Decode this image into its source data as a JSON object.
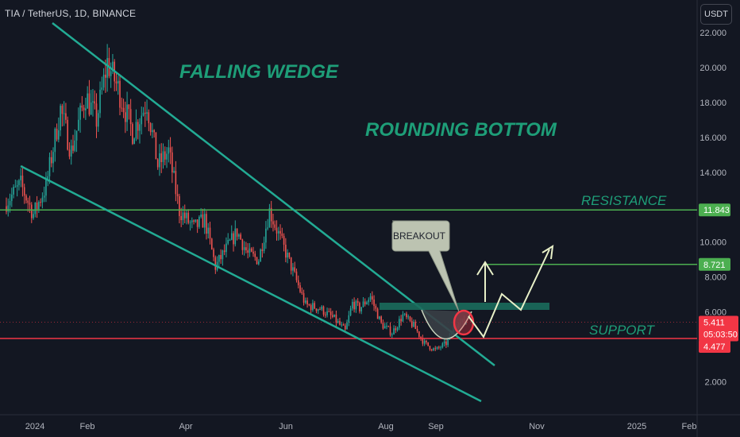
{
  "header": {
    "symbol_line": "TIA / TetherUS, 1D, BINANCE",
    "currency_button": "USDT"
  },
  "colors": {
    "background": "#131722",
    "up_candle": "#26a69a",
    "down_candle": "#ef5350",
    "trendline": "#22ab94",
    "resistance": "#4caf50",
    "support": "#f23645",
    "annotation_text": "#1e9e78",
    "arrow": "#e8f0c8"
  },
  "chart_data": {
    "type": "candlestick",
    "symbol": "TIA / TetherUS",
    "interval": "1D",
    "exchange": "BINANCE",
    "ylim": [
      0.5,
      22.2
    ],
    "y_ticks": [
      2,
      4,
      6,
      8,
      10,
      12,
      14,
      16,
      18,
      20,
      22
    ],
    "y_tick_labels": [
      "2.000",
      "4.000",
      "6.000",
      "8.000",
      "10.000",
      "12.000",
      "14.000",
      "16.000",
      "18.000",
      "20.000",
      "22.000"
    ],
    "x_tick_labels": [
      "2024",
      "Feb",
      "Apr",
      "Jun",
      "Aug",
      "Sep",
      "Nov",
      "2025",
      "Feb"
    ],
    "price_labels": [
      {
        "value": 11.843,
        "text": "11.843",
        "color": "#4caf50"
      },
      {
        "value": 8.721,
        "text": "8.721",
        "color": "#4caf50"
      },
      {
        "value": 5.411,
        "text": "5.411",
        "color": "#f23645"
      },
      {
        "value": 4.477,
        "text": "4.477",
        "color": "#f23645"
      }
    ],
    "countdown": "05:03:50",
    "levels": [
      {
        "name": "RESISTANCE",
        "value": 11.843
      },
      {
        "name": "SUPPORT",
        "value": 4.477
      }
    ],
    "annotations": [
      "FALLING WEDGE",
      "ROUNDING BOTTOM",
      "BREAKOUT",
      "RESISTANCE",
      "SUPPORT"
    ],
    "anchor_closes": [
      [
        0,
        12.3
      ],
      [
        8,
        13.3
      ],
      [
        15,
        11.6
      ],
      [
        22,
        13.2
      ],
      [
        30,
        17.6
      ],
      [
        36,
        15.2
      ],
      [
        44,
        18.4
      ],
      [
        50,
        17.0
      ],
      [
        56,
        20.3
      ],
      [
        62,
        18.8
      ],
      [
        70,
        16.3
      ],
      [
        78,
        18.0
      ],
      [
        84,
        14.4
      ],
      [
        90,
        15.2
      ],
      [
        96,
        11.8
      ],
      [
        104,
        10.8
      ],
      [
        110,
        11.3
      ],
      [
        116,
        8.6
      ],
      [
        122,
        9.6
      ],
      [
        128,
        10.6
      ],
      [
        134,
        9.3
      ],
      [
        140,
        9.0
      ],
      [
        146,
        11.8
      ],
      [
        152,
        10.2
      ],
      [
        158,
        8.6
      ],
      [
        166,
        6.4
      ],
      [
        174,
        6.2
      ],
      [
        182,
        5.6
      ],
      [
        188,
        4.9
      ],
      [
        192,
        6.5
      ],
      [
        196,
        6.2
      ],
      [
        202,
        6.9
      ],
      [
        208,
        5.3
      ],
      [
        214,
        4.8
      ],
      [
        220,
        5.8
      ],
      [
        226,
        5.2
      ],
      [
        232,
        4.2
      ],
      [
        238,
        3.8
      ],
      [
        244,
        4.2
      ],
      [
        250,
        5.4
      ],
      [
        255,
        5.411
      ]
    ]
  }
}
